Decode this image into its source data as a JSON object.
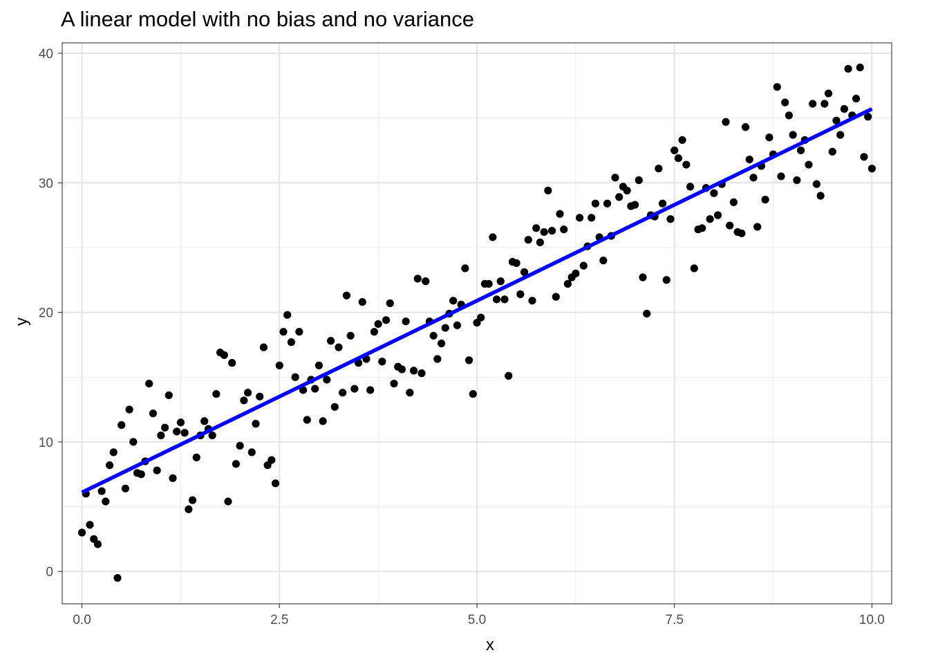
{
  "chart_data": {
    "type": "scatter",
    "title": "A linear model with no bias and no variance",
    "xlabel": "x",
    "ylabel": "y",
    "xlim": [
      -0.25,
      10.25
    ],
    "ylim": [
      -2.5,
      40.8
    ],
    "x_ticks": [
      0,
      2.5,
      5,
      7.5,
      10
    ],
    "x_tick_labels": [
      "0.0",
      "2.5",
      "5.0",
      "7.5",
      "10.0"
    ],
    "y_ticks": [
      0,
      10,
      20,
      30,
      40
    ],
    "y_tick_labels": [
      "0",
      "10",
      "20",
      "30",
      "40"
    ],
    "grid": true,
    "legend": "none",
    "point_color": "#000000",
    "line_color": "#0000ff",
    "fit_line": {
      "x": [
        0,
        10
      ],
      "y": [
        6.1,
        35.7
      ]
    },
    "points": [
      [
        0.0,
        3.0
      ],
      [
        0.05,
        6.0
      ],
      [
        0.1,
        3.6
      ],
      [
        0.15,
        2.5
      ],
      [
        0.2,
        2.1
      ],
      [
        0.25,
        6.2
      ],
      [
        0.3,
        5.4
      ],
      [
        0.35,
        8.2
      ],
      [
        0.4,
        9.2
      ],
      [
        0.45,
        -0.5
      ],
      [
        0.5,
        11.3
      ],
      [
        0.55,
        6.4
      ],
      [
        0.6,
        12.5
      ],
      [
        0.65,
        10.0
      ],
      [
        0.7,
        7.6
      ],
      [
        0.75,
        7.5
      ],
      [
        0.8,
        8.5
      ],
      [
        0.85,
        14.5
      ],
      [
        0.9,
        12.2
      ],
      [
        0.95,
        7.8
      ],
      [
        1.0,
        10.5
      ],
      [
        1.05,
        11.1
      ],
      [
        1.1,
        13.6
      ],
      [
        1.15,
        7.2
      ],
      [
        1.2,
        10.8
      ],
      [
        1.25,
        11.5
      ],
      [
        1.3,
        10.7
      ],
      [
        1.35,
        4.8
      ],
      [
        1.4,
        5.5
      ],
      [
        1.45,
        8.8
      ],
      [
        1.5,
        10.5
      ],
      [
        1.55,
        11.6
      ],
      [
        1.6,
        11.0
      ],
      [
        1.65,
        10.5
      ],
      [
        1.7,
        13.7
      ],
      [
        1.75,
        16.9
      ],
      [
        1.8,
        16.7
      ],
      [
        1.85,
        5.4
      ],
      [
        1.9,
        16.1
      ],
      [
        1.95,
        8.3
      ],
      [
        2.0,
        9.7
      ],
      [
        2.05,
        13.2
      ],
      [
        2.1,
        13.8
      ],
      [
        2.15,
        9.2
      ],
      [
        2.2,
        11.4
      ],
      [
        2.25,
        13.5
      ],
      [
        2.3,
        17.3
      ],
      [
        2.35,
        8.2
      ],
      [
        2.4,
        8.6
      ],
      [
        2.45,
        6.8
      ],
      [
        2.5,
        15.9
      ],
      [
        2.55,
        18.5
      ],
      [
        2.6,
        19.8
      ],
      [
        2.65,
        17.7
      ],
      [
        2.7,
        15.0
      ],
      [
        2.75,
        18.5
      ],
      [
        2.8,
        14.0
      ],
      [
        2.85,
        11.7
      ],
      [
        2.9,
        14.8
      ],
      [
        2.95,
        14.1
      ],
      [
        3.0,
        15.9
      ],
      [
        3.05,
        11.6
      ],
      [
        3.1,
        14.8
      ],
      [
        3.15,
        17.8
      ],
      [
        3.2,
        12.7
      ],
      [
        3.25,
        17.3
      ],
      [
        3.3,
        13.8
      ],
      [
        3.35,
        21.3
      ],
      [
        3.4,
        18.2
      ],
      [
        3.45,
        14.1
      ],
      [
        3.5,
        16.1
      ],
      [
        3.55,
        20.8
      ],
      [
        3.6,
        16.4
      ],
      [
        3.65,
        14.0
      ],
      [
        3.7,
        18.5
      ],
      [
        3.75,
        19.1
      ],
      [
        3.8,
        16.2
      ],
      [
        3.85,
        19.4
      ],
      [
        3.9,
        20.7
      ],
      [
        3.95,
        14.5
      ],
      [
        4.0,
        15.8
      ],
      [
        4.05,
        15.6
      ],
      [
        4.1,
        19.3
      ],
      [
        4.15,
        13.8
      ],
      [
        4.2,
        15.5
      ],
      [
        4.25,
        22.6
      ],
      [
        4.3,
        15.3
      ],
      [
        4.35,
        22.4
      ],
      [
        4.4,
        19.3
      ],
      [
        4.45,
        18.2
      ],
      [
        4.5,
        16.4
      ],
      [
        4.55,
        17.6
      ],
      [
        4.6,
        18.8
      ],
      [
        4.65,
        19.9
      ],
      [
        4.7,
        20.9
      ],
      [
        4.75,
        19.0
      ],
      [
        4.8,
        20.6
      ],
      [
        4.85,
        23.4
      ],
      [
        4.9,
        16.3
      ],
      [
        4.95,
        13.7
      ],
      [
        5.0,
        19.2
      ],
      [
        5.05,
        19.6
      ],
      [
        5.1,
        22.2
      ],
      [
        5.15,
        22.2
      ],
      [
        5.2,
        25.8
      ],
      [
        5.25,
        21.0
      ],
      [
        5.3,
        22.4
      ],
      [
        5.35,
        21.0
      ],
      [
        5.4,
        15.1
      ],
      [
        5.45,
        23.9
      ],
      [
        5.5,
        23.8
      ],
      [
        5.55,
        21.4
      ],
      [
        5.6,
        23.1
      ],
      [
        5.65,
        25.6
      ],
      [
        5.7,
        20.9
      ],
      [
        5.75,
        26.5
      ],
      [
        5.8,
        25.4
      ],
      [
        5.85,
        26.2
      ],
      [
        5.9,
        29.4
      ],
      [
        5.95,
        26.3
      ],
      [
        6.0,
        21.2
      ],
      [
        6.05,
        27.6
      ],
      [
        6.1,
        26.4
      ],
      [
        6.15,
        22.2
      ],
      [
        6.2,
        22.7
      ],
      [
        6.25,
        23.0
      ],
      [
        6.3,
        27.3
      ],
      [
        6.35,
        23.6
      ],
      [
        6.4,
        25.1
      ],
      [
        6.45,
        27.3
      ],
      [
        6.5,
        28.4
      ],
      [
        6.55,
        25.8
      ],
      [
        6.6,
        24.0
      ],
      [
        6.65,
        28.4
      ],
      [
        6.7,
        25.9
      ],
      [
        6.75,
        30.4
      ],
      [
        6.8,
        28.9
      ],
      [
        6.85,
        29.7
      ],
      [
        6.9,
        29.4
      ],
      [
        6.95,
        28.2
      ],
      [
        7.0,
        28.3
      ],
      [
        7.05,
        30.2
      ],
      [
        7.1,
        22.7
      ],
      [
        7.15,
        19.9
      ],
      [
        7.2,
        27.5
      ],
      [
        7.25,
        27.4
      ],
      [
        7.3,
        31.1
      ],
      [
        7.35,
        28.4
      ],
      [
        7.4,
        22.5
      ],
      [
        7.45,
        27.2
      ],
      [
        7.5,
        32.5
      ],
      [
        7.55,
        31.9
      ],
      [
        7.6,
        33.3
      ],
      [
        7.65,
        31.4
      ],
      [
        7.7,
        29.7
      ],
      [
        7.75,
        23.4
      ],
      [
        7.8,
        26.4
      ],
      [
        7.85,
        26.5
      ],
      [
        7.9,
        29.6
      ],
      [
        7.95,
        27.2
      ],
      [
        8.0,
        29.2
      ],
      [
        8.05,
        27.5
      ],
      [
        8.1,
        29.9
      ],
      [
        8.15,
        34.7
      ],
      [
        8.2,
        26.7
      ],
      [
        8.25,
        28.5
      ],
      [
        8.3,
        26.2
      ],
      [
        8.35,
        26.1
      ],
      [
        8.4,
        34.3
      ],
      [
        8.45,
        31.8
      ],
      [
        8.5,
        30.4
      ],
      [
        8.55,
        26.6
      ],
      [
        8.6,
        31.3
      ],
      [
        8.65,
        28.7
      ],
      [
        8.7,
        33.5
      ],
      [
        8.75,
        32.2
      ],
      [
        8.8,
        37.4
      ],
      [
        8.85,
        30.5
      ],
      [
        8.9,
        36.2
      ],
      [
        8.95,
        35.2
      ],
      [
        9.0,
        33.7
      ],
      [
        9.05,
        30.2
      ],
      [
        9.1,
        32.5
      ],
      [
        9.15,
        33.3
      ],
      [
        9.2,
        31.4
      ],
      [
        9.25,
        36.1
      ],
      [
        9.3,
        29.9
      ],
      [
        9.35,
        29.0
      ],
      [
        9.4,
        36.1
      ],
      [
        9.45,
        36.9
      ],
      [
        9.5,
        32.4
      ],
      [
        9.55,
        34.8
      ],
      [
        9.6,
        33.7
      ],
      [
        9.65,
        35.7
      ],
      [
        9.7,
        38.8
      ],
      [
        9.75,
        35.2
      ],
      [
        9.8,
        36.5
      ],
      [
        9.85,
        38.9
      ],
      [
        9.9,
        32.0
      ],
      [
        9.95,
        35.1
      ],
      [
        10.0,
        31.1
      ]
    ]
  }
}
